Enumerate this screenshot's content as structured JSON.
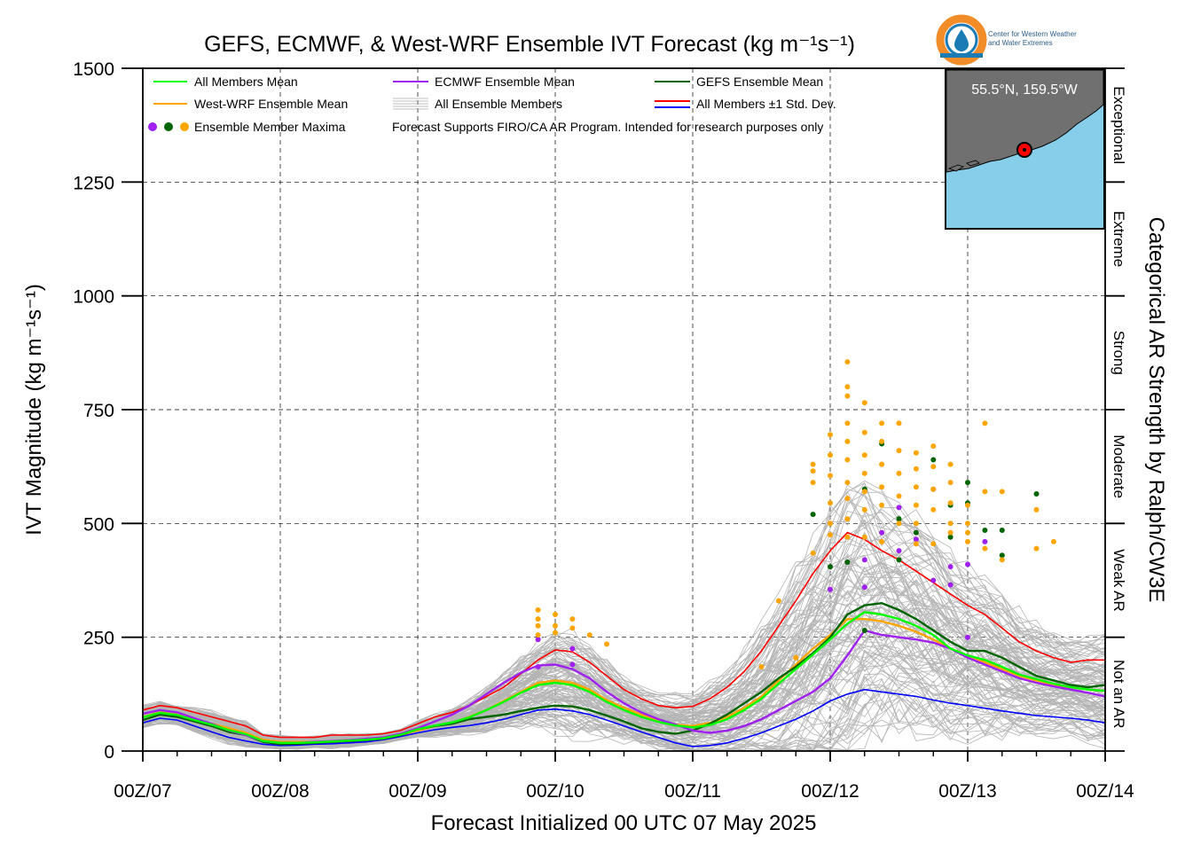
{
  "title": "GEFS, ECMWF, & West-WRF Ensemble IVT Forecast (kg m⁻¹s⁻¹)",
  "logo": {
    "text_line1": "Center for Western Weather",
    "text_line2": "and Water Extremes",
    "colors": {
      "ring": "#f28c28",
      "drop": "#1a7bb5"
    }
  },
  "inset_map": {
    "label": "55.5°N, 159.5°W",
    "colors": {
      "ocean": "#87ceeb",
      "land": "#707070",
      "marker": "#ff0000"
    }
  },
  "legend": {
    "items": [
      {
        "label": "All Members Mean",
        "color": "#00ff00",
        "kind": "line"
      },
      {
        "label": "ECMWF Ensemble Mean",
        "color": "#a020f0",
        "kind": "line"
      },
      {
        "label": "GEFS Ensemble Mean",
        "color": "#006400",
        "kind": "line"
      },
      {
        "label": "West-WRF Ensemble Mean",
        "color": "#ffa500",
        "kind": "line"
      },
      {
        "label": "All Ensemble Members",
        "color": "#aaaaaa",
        "kind": "multiline"
      },
      {
        "label": "All Members ±1 Std. Dev.",
        "color": "#ff0000",
        "color2": "#0000ff",
        "kind": "double"
      },
      {
        "label": "Ensemble Member Maxima",
        "kind": "dots",
        "dot_colors": [
          "#a020f0",
          "#006400",
          "#ffa500"
        ]
      }
    ],
    "note": "Forecast Supports FIRO/CA AR Program. Intended for research purposes only"
  },
  "right_axis": {
    "title": "Categorical AR Strength by Ralph/CW3E",
    "categories": [
      "Exceptional",
      "Extreme",
      "Strong",
      "Moderate",
      "Weak AR",
      "Not an AR"
    ]
  },
  "chart_data": {
    "type": "line",
    "xlabel": "Forecast Initialized 00 UTC 07 May 2025",
    "ylabel": "IVT Magnitude (kg m⁻¹s⁻¹)",
    "xlim": [
      0,
      168
    ],
    "ylim": [
      0,
      1500
    ],
    "grid": true,
    "legend_position": "top-left",
    "x_ticks": [
      {
        "value": 0,
        "label": "00Z/07"
      },
      {
        "value": 24,
        "label": "00Z/08"
      },
      {
        "value": 48,
        "label": "00Z/09"
      },
      {
        "value": 72,
        "label": "00Z/10"
      },
      {
        "value": 96,
        "label": "00Z/11"
      },
      {
        "value": 120,
        "label": "00Z/12"
      },
      {
        "value": 144,
        "label": "00Z/13"
      },
      {
        "value": 168,
        "label": "00Z/14"
      }
    ],
    "y_ticks": [
      {
        "value": 0,
        "label": "0"
      },
      {
        "value": 250,
        "label": "250"
      },
      {
        "value": 500,
        "label": "500"
      },
      {
        "value": 750,
        "label": "750"
      },
      {
        "value": 1000,
        "label": "1000"
      },
      {
        "value": 1250,
        "label": "1250"
      },
      {
        "value": 1500,
        "label": "1500"
      }
    ],
    "category_bounds": [
      0,
      250,
      500,
      750,
      1000,
      1250,
      1500
    ],
    "x": [
      0,
      3,
      6,
      9,
      12,
      15,
      18,
      21,
      24,
      27,
      30,
      33,
      36,
      39,
      42,
      45,
      48,
      51,
      54,
      57,
      60,
      63,
      66,
      69,
      72,
      75,
      78,
      81,
      84,
      87,
      90,
      93,
      96,
      99,
      102,
      105,
      108,
      111,
      114,
      117,
      120,
      123,
      126,
      129,
      132,
      135,
      138,
      141,
      144,
      147,
      150,
      153,
      156,
      159,
      162,
      165,
      168
    ],
    "series": [
      {
        "name": "All Members ±1 Std. Dev.",
        "role": "upper",
        "color": "#ff0000",
        "values": [
          90,
          100,
          95,
          85,
          75,
          65,
          55,
          35,
          30,
          30,
          30,
          35,
          35,
          35,
          38,
          45,
          60,
          75,
          85,
          100,
          120,
          140,
          170,
          200,
          222,
          218,
          195,
          165,
          135,
          115,
          100,
          95,
          98,
          115,
          140,
          175,
          220,
          275,
          330,
          390,
          440,
          480,
          465,
          440,
          420,
          395,
          370,
          345,
          320,
          300,
          270,
          240,
          220,
          205,
          195,
          200,
          200
        ]
      },
      {
        "name": "All Members ±1 Std. Dev.",
        "role": "lower",
        "color": "#0000ff",
        "values": [
          62,
          72,
          68,
          55,
          42,
          30,
          22,
          15,
          12,
          13,
          15,
          16,
          18,
          20,
          25,
          32,
          40,
          47,
          52,
          56,
          62,
          70,
          80,
          90,
          92,
          88,
          80,
          68,
          55,
          42,
          30,
          18,
          10,
          12,
          18,
          28,
          40,
          55,
          70,
          88,
          110,
          125,
          135,
          130,
          125,
          120,
          112,
          105,
          100,
          94,
          88,
          83,
          78,
          75,
          72,
          68,
          62
        ]
      },
      {
        "name": "West-WRF Ensemble Mean",
        "color": "#ffa500",
        "values": [
          75,
          85,
          80,
          70,
          60,
          50,
          40,
          25,
          20,
          20,
          20,
          22,
          24,
          25,
          28,
          35,
          45,
          55,
          62,
          75,
          90,
          110,
          130,
          150,
          155,
          150,
          135,
          112,
          95,
          80,
          68,
          58,
          55,
          62,
          75,
          95,
          120,
          155,
          190,
          225,
          255,
          290,
          290,
          285,
          275,
          262,
          245,
          225,
          210,
          195,
          180,
          165,
          155,
          145,
          140,
          135,
          132
        ]
      },
      {
        "name": "GEFS Ensemble Mean",
        "color": "#006400",
        "values": [
          68,
          80,
          75,
          65,
          55,
          42,
          35,
          20,
          15,
          16,
          18,
          20,
          22,
          24,
          27,
          35,
          48,
          55,
          60,
          70,
          75,
          80,
          88,
          95,
          100,
          98,
          90,
          78,
          65,
          50,
          42,
          38,
          45,
          60,
          80,
          105,
          130,
          160,
          185,
          215,
          250,
          300,
          320,
          325,
          310,
          290,
          265,
          240,
          220,
          220,
          205,
          185,
          165,
          155,
          145,
          140,
          145
        ]
      },
      {
        "name": "ECMWF Ensemble Mean",
        "color": "#a020f0",
        "values": [
          82,
          90,
          85,
          72,
          60,
          45,
          35,
          22,
          18,
          18,
          20,
          22,
          24,
          27,
          30,
          38,
          50,
          65,
          80,
          100,
          125,
          150,
          172,
          188,
          190,
          180,
          160,
          130,
          105,
          85,
          70,
          58,
          45,
          40,
          45,
          55,
          70,
          90,
          110,
          130,
          160,
          210,
          265,
          255,
          250,
          245,
          238,
          225,
          205,
          190,
          175,
          160,
          150,
          142,
          135,
          128,
          120
        ]
      },
      {
        "name": "All Members Mean",
        "color": "#00ff00",
        "values": [
          74,
          84,
          79,
          68,
          58,
          46,
          37,
          22,
          18,
          18,
          19,
          21,
          23,
          25,
          28,
          36,
          48,
          56,
          63,
          74,
          90,
          108,
          128,
          145,
          150,
          145,
          130,
          108,
          90,
          75,
          64,
          56,
          52,
          57,
          70,
          90,
          115,
          148,
          180,
          212,
          245,
          280,
          305,
          300,
          290,
          275,
          255,
          225,
          210,
          200,
          185,
          168,
          158,
          148,
          140,
          135,
          132
        ]
      }
    ],
    "ensemble_members_count": 120,
    "maxima": [
      {
        "model": "ECMWF",
        "color": "#a020f0",
        "points": [
          [
            69,
            245
          ],
          [
            69,
            185
          ],
          [
            75,
            190
          ],
          [
            120,
            355
          ],
          [
            126,
            360
          ],
          [
            126,
            420
          ],
          [
            129,
            480
          ],
          [
            132,
            440
          ],
          [
            135,
            465
          ],
          [
            138,
            375
          ],
          [
            141,
            405
          ],
          [
            141,
            365
          ],
          [
            144,
            410
          ],
          [
            144,
            250
          ],
          [
            147,
            460
          ],
          [
            75,
            225
          ],
          [
            132,
            535
          ],
          [
            138,
            575
          ]
        ]
      },
      {
        "model": "GEFS",
        "color": "#006400",
        "points": [
          [
            117,
            520
          ],
          [
            120,
            405
          ],
          [
            123,
            415
          ],
          [
            126,
            575
          ],
          [
            129,
            675
          ],
          [
            132,
            510
          ],
          [
            135,
            480
          ],
          [
            138,
            640
          ],
          [
            141,
            540
          ],
          [
            144,
            590
          ],
          [
            144,
            545
          ],
          [
            147,
            485
          ],
          [
            150,
            485
          ],
          [
            150,
            430
          ],
          [
            156,
            565
          ],
          [
            141,
            470
          ],
          [
            132,
            420
          ],
          [
            126,
            265
          ]
        ]
      },
      {
        "model": "West-WRF",
        "color": "#ffa500",
        "points": [
          [
            69,
            310
          ],
          [
            69,
            290
          ],
          [
            69,
            275
          ],
          [
            69,
            255
          ],
          [
            72,
            300
          ],
          [
            72,
            275
          ],
          [
            72,
            260
          ],
          [
            75,
            290
          ],
          [
            75,
            270
          ],
          [
            78,
            255
          ],
          [
            81,
            235
          ],
          [
            117,
            615
          ],
          [
            117,
            590
          ],
          [
            117,
            630
          ],
          [
            120,
            695
          ],
          [
            120,
            650
          ],
          [
            120,
            605
          ],
          [
            120,
            545
          ],
          [
            123,
            800
          ],
          [
            123,
            780
          ],
          [
            123,
            720
          ],
          [
            123,
            680
          ],
          [
            123,
            640
          ],
          [
            123,
            590
          ],
          [
            123,
            555
          ],
          [
            123,
            510
          ],
          [
            126,
            765
          ],
          [
            126,
            700
          ],
          [
            126,
            650
          ],
          [
            126,
            610
          ],
          [
            126,
            570
          ],
          [
            126,
            530
          ],
          [
            129,
            720
          ],
          [
            129,
            680
          ],
          [
            129,
            630
          ],
          [
            129,
            580
          ],
          [
            129,
            540
          ],
          [
            132,
            720
          ],
          [
            132,
            660
          ],
          [
            132,
            610
          ],
          [
            132,
            560
          ],
          [
            132,
            500
          ],
          [
            135,
            655
          ],
          [
            135,
            620
          ],
          [
            135,
            580
          ],
          [
            135,
            540
          ],
          [
            135,
            500
          ],
          [
            138,
            670
          ],
          [
            138,
            625
          ],
          [
            138,
            575
          ],
          [
            138,
            530
          ],
          [
            141,
            630
          ],
          [
            141,
            590
          ],
          [
            141,
            545
          ],
          [
            141,
            500
          ],
          [
            144,
            540
          ],
          [
            144,
            500
          ],
          [
            144,
            460
          ],
          [
            147,
            570
          ],
          [
            147,
            445
          ],
          [
            150,
            420
          ],
          [
            156,
            530
          ],
          [
            156,
            445
          ],
          [
            159,
            460
          ],
          [
            108,
            185
          ],
          [
            111,
            330
          ],
          [
            114,
            205
          ],
          [
            117,
            435
          ],
          [
            120,
            500
          ],
          [
            120,
            475
          ],
          [
            123,
            470
          ],
          [
            123,
            855
          ],
          [
            126,
            470
          ],
          [
            129,
            460
          ],
          [
            135,
            455
          ],
          [
            138,
            455
          ],
          [
            141,
            480
          ],
          [
            144,
            480
          ],
          [
            147,
            720
          ],
          [
            150,
            570
          ]
        ]
      }
    ]
  }
}
